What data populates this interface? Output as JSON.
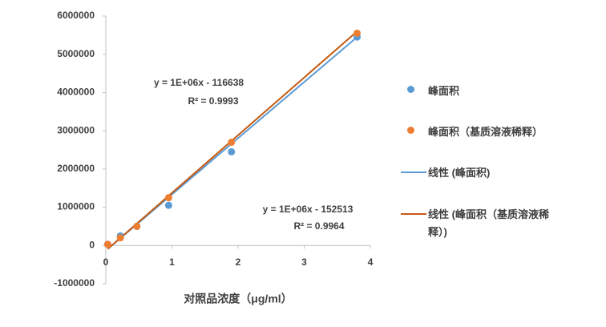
{
  "chart_data": {
    "type": "scatter",
    "x_label": "对照品浓度（μg/ml）",
    "xlim": [
      0,
      4
    ],
    "xticks": [
      0,
      1,
      2,
      3,
      4
    ],
    "ylim": [
      -1000000,
      6000000
    ],
    "yticks": [
      -1000000,
      0,
      1000000,
      2000000,
      3000000,
      4000000,
      5000000,
      6000000
    ],
    "series": [
      {
        "name": "峰面积",
        "color": "#5b9bd5",
        "x": [
          0.03,
          0.22,
          0.47,
          0.95,
          1.9,
          3.8
        ],
        "values": [
          30000,
          250000,
          500000,
          1050000,
          2450000,
          5450000
        ]
      },
      {
        "name": "峰面积（基质溶液稀释）",
        "color": "#ed7d31",
        "x": [
          0.03,
          0.22,
          0.47,
          0.95,
          1.9,
          3.8
        ],
        "values": [
          30000,
          200000,
          500000,
          1250000,
          2700000,
          5550000
        ]
      }
    ],
    "trendlines": [
      {
        "name": "线性 (峰面积)",
        "color": "#5b9bd5",
        "x": [
          0.03,
          3.8
        ],
        "values": [
          -90000,
          5450000
        ]
      },
      {
        "name": "线性 (峰面积（基质溶液稀释）)",
        "color": "#c55a11",
        "x": [
          0.03,
          3.8
        ],
        "values": [
          -90000,
          5600000
        ]
      }
    ],
    "annotations": [
      "y = 1E+06x - 116638",
      "R² = 0.9993",
      "y = 1E+06x - 152513",
      "R² = 0.9964"
    ]
  }
}
